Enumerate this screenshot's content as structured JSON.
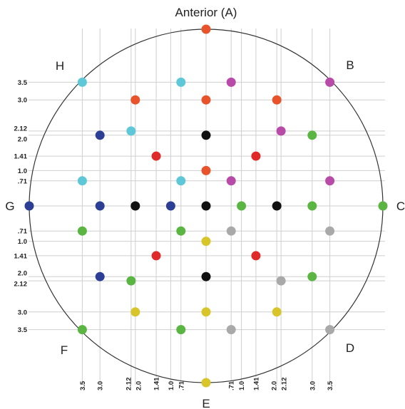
{
  "directions": {
    "top": "Anterior (A)",
    "top_right": "B",
    "right": "C",
    "bottom_right": "D",
    "bottom": "E",
    "bottom_left": "F",
    "left": "G",
    "top_left": "H"
  },
  "colors": {
    "orange": "#e8532b",
    "red": "#e02a2a",
    "cyan": "#5fc8d8",
    "magenta": "#b84aa8",
    "blue": "#2c3f95",
    "green": "#5ab543",
    "black": "#111111",
    "gray": "#a9a9a9",
    "yellow": "#d8c52a",
    "circle": "#333333",
    "grid": "#cfcfcf"
  },
  "axis_ticks": [
    {
      "label": "3.5",
      "value": 3.5
    },
    {
      "label": "3.0",
      "value": 3.0
    },
    {
      "label": "2.12",
      "value": 2.12
    },
    {
      "label": "2.0",
      "value": 2.0
    },
    {
      "label": "1.41",
      "value": 1.41
    },
    {
      "label": "1.0",
      "value": 1.0
    },
    {
      "label": ".71",
      "value": 0.71
    }
  ],
  "points": [
    {
      "x": 0,
      "y": 5,
      "color": "orange"
    },
    {
      "x": -3.5,
      "y": 3.5,
      "color": "cyan"
    },
    {
      "x": -0.71,
      "y": 3.5,
      "color": "cyan"
    },
    {
      "x": 0.71,
      "y": 3.5,
      "color": "magenta"
    },
    {
      "x": 3.5,
      "y": 3.5,
      "color": "magenta"
    },
    {
      "x": -2,
      "y": 3,
      "color": "orange"
    },
    {
      "x": 0,
      "y": 3,
      "color": "orange"
    },
    {
      "x": 2,
      "y": 3,
      "color": "orange"
    },
    {
      "x": -2.12,
      "y": 2.12,
      "color": "cyan"
    },
    {
      "x": 2.12,
      "y": 2.12,
      "color": "magenta"
    },
    {
      "x": -3,
      "y": 2,
      "color": "blue"
    },
    {
      "x": 0,
      "y": 2,
      "color": "black"
    },
    {
      "x": 3,
      "y": 2,
      "color": "green"
    },
    {
      "x": -1.41,
      "y": 1.41,
      "color": "red"
    },
    {
      "x": 1.41,
      "y": 1.41,
      "color": "red"
    },
    {
      "x": 0,
      "y": 1,
      "color": "orange"
    },
    {
      "x": -3.5,
      "y": 0.71,
      "color": "cyan"
    },
    {
      "x": -0.71,
      "y": 0.71,
      "color": "cyan"
    },
    {
      "x": 0.71,
      "y": 0.71,
      "color": "magenta"
    },
    {
      "x": 3.5,
      "y": 0.71,
      "color": "magenta"
    },
    {
      "x": -5,
      "y": 0,
      "color": "blue"
    },
    {
      "x": -3,
      "y": 0,
      "color": "blue"
    },
    {
      "x": -2,
      "y": 0,
      "color": "black"
    },
    {
      "x": -1,
      "y": 0,
      "color": "blue"
    },
    {
      "x": 0,
      "y": 0,
      "color": "black"
    },
    {
      "x": 1,
      "y": 0,
      "color": "green"
    },
    {
      "x": 2,
      "y": 0,
      "color": "black"
    },
    {
      "x": 3,
      "y": 0,
      "color": "green"
    },
    {
      "x": 5,
      "y": 0,
      "color": "green"
    },
    {
      "x": -3.5,
      "y": -0.71,
      "color": "green"
    },
    {
      "x": -0.71,
      "y": -0.71,
      "color": "green"
    },
    {
      "x": 0.71,
      "y": -0.71,
      "color": "gray"
    },
    {
      "x": 3.5,
      "y": -0.71,
      "color": "gray"
    },
    {
      "x": 0,
      "y": -1,
      "color": "yellow"
    },
    {
      "x": -1.41,
      "y": -1.41,
      "color": "red"
    },
    {
      "x": 1.41,
      "y": -1.41,
      "color": "red"
    },
    {
      "x": -3,
      "y": -2,
      "color": "blue"
    },
    {
      "x": 0,
      "y": -2,
      "color": "black"
    },
    {
      "x": 3,
      "y": -2,
      "color": "green"
    },
    {
      "x": -2.12,
      "y": -2.12,
      "color": "green"
    },
    {
      "x": 2.12,
      "y": -2.12,
      "color": "gray"
    },
    {
      "x": -2,
      "y": -3,
      "color": "yellow"
    },
    {
      "x": 0,
      "y": -3,
      "color": "yellow"
    },
    {
      "x": 2,
      "y": -3,
      "color": "yellow"
    },
    {
      "x": -3.5,
      "y": -3.5,
      "color": "green"
    },
    {
      "x": -0.71,
      "y": -3.5,
      "color": "green"
    },
    {
      "x": 0.71,
      "y": -3.5,
      "color": "gray"
    },
    {
      "x": 3.5,
      "y": -3.5,
      "color": "gray"
    },
    {
      "x": 0,
      "y": -5,
      "color": "yellow"
    }
  ]
}
